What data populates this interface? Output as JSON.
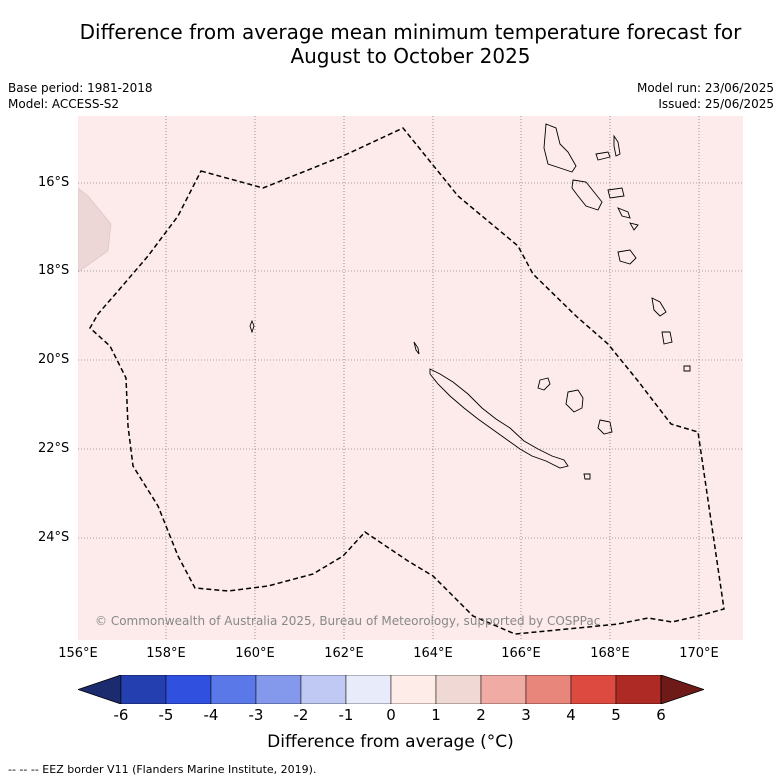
{
  "title_line1": "Difference from average mean minimum temperature forecast for",
  "title_line2": "August to October 2025",
  "base_period": "Base period: 1981-2018",
  "model": "Model: ACCESS-S2",
  "model_run": "Model run: 23/06/2025",
  "issued": "Issued: 25/06/2025",
  "lat_labels": [
    "16°S",
    "18°S",
    "20°S",
    "22°S",
    "24°S"
  ],
  "lon_labels": [
    "156°E",
    "158°E",
    "160°E",
    "162°E",
    "164°E",
    "166°E",
    "168°E",
    "170°E"
  ],
  "copyright": "© Commonwealth of Australia 2025, Bureau of Meteorology, supported by COSPPac",
  "colorbar": {
    "ticks": [
      "-6",
      "-5",
      "-4",
      "-3",
      "-2",
      "-1",
      "0",
      "1",
      "2",
      "3",
      "4",
      "5",
      "6"
    ],
    "colors": [
      "#1c2a6e",
      "#2440b0",
      "#3050e0",
      "#5a78e8",
      "#8498ec",
      "#c0c8f4",
      "#e8ecfa",
      "#fdece8",
      "#f0d8d4",
      "#f0aca4",
      "#e8867c",
      "#dc4a40",
      "#ae2a24",
      "#6e1a18"
    ],
    "label": "Difference from average (°C)"
  },
  "legend_note": "-- -- -- EEZ border V11 (Flanders Marine Institute, 2019).",
  "map_colors": {
    "background": "#fcebea",
    "warmer_patch": "#ecd6d6"
  }
}
